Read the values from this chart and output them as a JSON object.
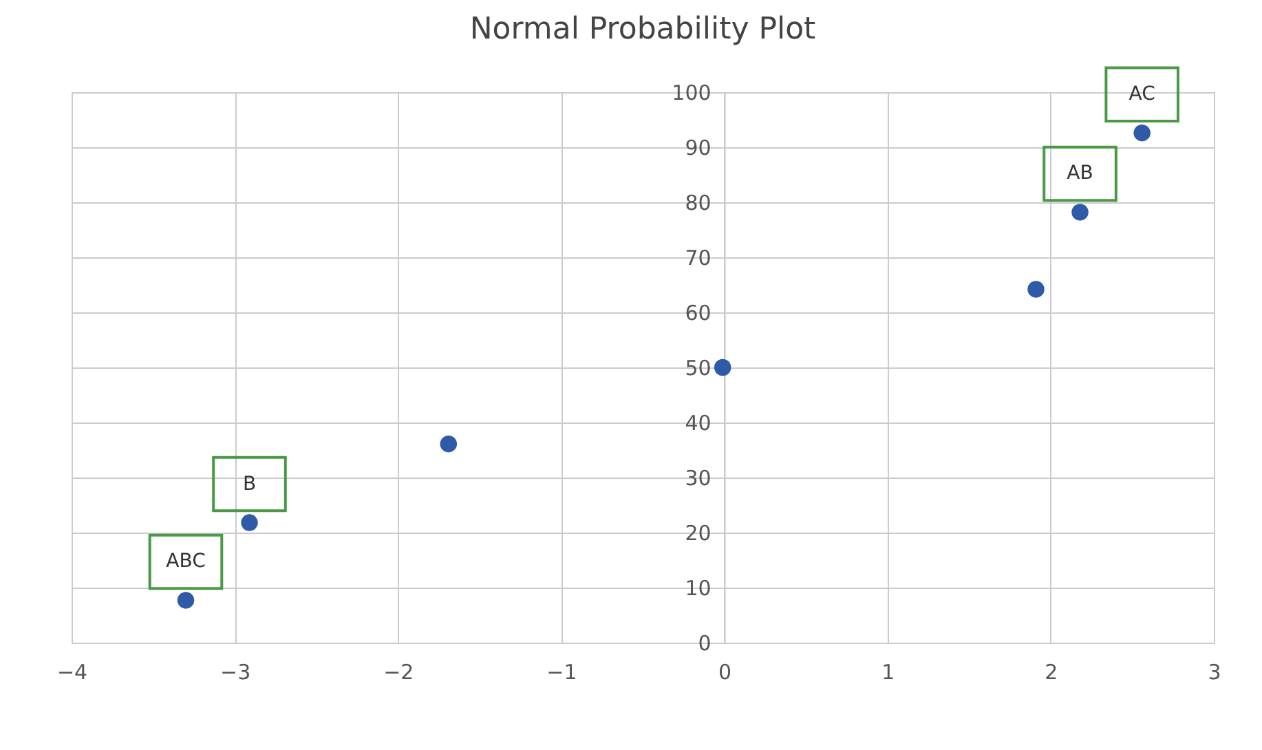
{
  "chart_data": {
    "type": "scatter",
    "title": "Normal Probability Plot",
    "x": [
      -3.3,
      -2.91,
      -1.69,
      -0.01,
      1.91,
      2.18,
      2.56
    ],
    "series": [
      {
        "color": "#2e5aa8",
        "values": [
          7.7,
          21.8,
          36.1,
          50,
          64.2,
          78.2,
          92.6
        ]
      }
    ],
    "xlim": [
      -4,
      3
    ],
    "xticks": [
      -4,
      -3,
      -2,
      -1,
      0,
      1,
      2,
      3
    ],
    "ylim": [
      0,
      100
    ],
    "yticks": [
      0,
      10,
      20,
      30,
      40,
      50,
      60,
      70,
      80,
      90,
      100
    ],
    "grid": true,
    "marker": "circle",
    "annotations": [
      {
        "text": "ABC",
        "x": -3.3,
        "y": 7.7
      },
      {
        "text": "B",
        "x": -2.91,
        "y": 21.8
      },
      {
        "text": "AB",
        "x": 2.18,
        "y": 78.2
      },
      {
        "text": "AC",
        "x": 2.56,
        "y": 92.6
      }
    ]
  }
}
